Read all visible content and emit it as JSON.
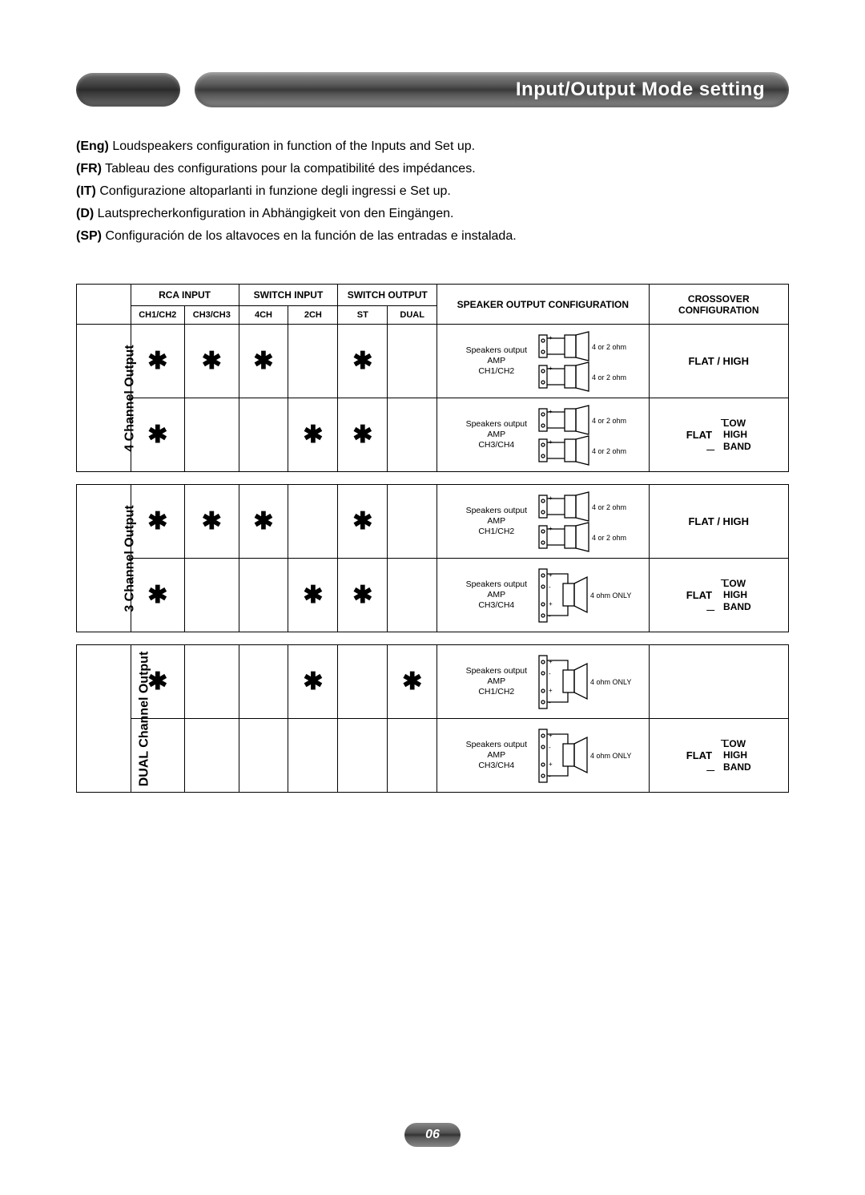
{
  "header": {
    "title": "Input/Output Mode setting"
  },
  "intro": {
    "eng": {
      "tag": "(Eng)",
      "text": "Loudspeakers configuration in function of the Inputs and Set up."
    },
    "fr": {
      "tag": "(FR)",
      "text": "Tableau des configurations pour la compatibilité des impédances."
    },
    "it": {
      "tag": "(IT)",
      "text": "Configurazione altoparlanti in funzione degli ingressi e Set up."
    },
    "d": {
      "tag": "(D)",
      "text": "Lautsprecherkonfiguration in Abhängigkeit von den Eingängen."
    },
    "sp": {
      "tag": "(SP)",
      "text": "Configuración de los altavoces en la función de las entradas e instalada."
    }
  },
  "table": {
    "headers": {
      "rca_input": "RCA INPUT",
      "switch_input": "SWITCH INPUT",
      "switch_output": "SWITCH OUTPUT",
      "speaker_output": "SPEAKER OUTPUT CONFIGURATION",
      "crossover": "CROSSOVER CONFIGURATION",
      "ch1ch2": "CH1/CH2",
      "ch3ch3": "CH3/CH3",
      "c4ch": "4CH",
      "c2ch": "2CH",
      "st": "ST",
      "dual": "DUAL"
    },
    "star": "✱",
    "sections": [
      {
        "label": "4 Channel Output",
        "rows": [
          {
            "marks": {
              "ch1ch2": true,
              "ch3ch3": true,
              "c4ch": true,
              "c2ch": false,
              "st": true,
              "dual": false
            },
            "speaker": {
              "title": "Speakers output",
              "amp": "AMP",
              "ch": "CH1/CH2",
              "type": "stereo",
              "ohm1": "4 or 2 ohm",
              "ohm2": "4 or 2 ohm"
            },
            "xover": {
              "mode": "single",
              "text": "FLAT / HIGH"
            }
          },
          {
            "marks": {
              "ch1ch2": true,
              "ch3ch3": false,
              "c4ch": false,
              "c2ch": true,
              "st": true,
              "dual": false
            },
            "speaker": {
              "title": "Speakers output",
              "amp": "AMP",
              "ch": "CH3/CH4",
              "type": "stereo",
              "ohm1": "4 or 2 ohm",
              "ohm2": "4 or 2 ohm"
            },
            "xover": {
              "mode": "stack",
              "flat": "FLAT",
              "opts": [
                "LOW",
                "HIGH",
                "BAND"
              ]
            }
          }
        ]
      },
      {
        "label": "3 Channel Output",
        "rows": [
          {
            "marks": {
              "ch1ch2": true,
              "ch3ch3": true,
              "c4ch": true,
              "c2ch": false,
              "st": true,
              "dual": false
            },
            "speaker": {
              "title": "Speakers output",
              "amp": "AMP",
              "ch": "CH1/CH2",
              "type": "stereo",
              "ohm1": "4 or 2 ohm",
              "ohm2": "4 or 2 ohm"
            },
            "xover": {
              "mode": "single",
              "text": "FLAT / HIGH"
            }
          },
          {
            "marks": {
              "ch1ch2": true,
              "ch3ch3": false,
              "c4ch": false,
              "c2ch": true,
              "st": true,
              "dual": false
            },
            "speaker": {
              "title": "Speakers output",
              "amp": "AMP",
              "ch": "CH3/CH4",
              "type": "bridged",
              "ohm1": "4 ohm ONLY"
            },
            "xover": {
              "mode": "stack",
              "flat": "FLAT",
              "opts": [
                "LOW",
                "HIGH",
                "BAND"
              ]
            }
          }
        ]
      },
      {
        "label": "DUAL Channel Output",
        "rows": [
          {
            "marks": {
              "ch1ch2": true,
              "ch3ch3": false,
              "c4ch": false,
              "c2ch": true,
              "st": false,
              "dual": true
            },
            "speaker": {
              "title": "Speakers output",
              "amp": "AMP",
              "ch": "CH1/CH2",
              "type": "bridged",
              "ohm1": "4 ohm ONLY"
            },
            "xover": {
              "mode": "blank"
            }
          },
          {
            "marks": {
              "ch1ch2": false,
              "ch3ch3": false,
              "c4ch": false,
              "c2ch": false,
              "st": false,
              "dual": false
            },
            "speaker": {
              "title": "Speakers output",
              "amp": "AMP",
              "ch": "CH3/CH4",
              "type": "bridged",
              "ohm1": "4 ohm ONLY"
            },
            "xover": {
              "mode": "stack",
              "flat": "FLAT",
              "opts": [
                "LOW",
                "HIGH",
                "BAND"
              ]
            }
          }
        ]
      }
    ]
  },
  "page_number": "06",
  "colors": {
    "text": "#000000",
    "border": "#000000",
    "pill_text": "#ffffff",
    "background": "#ffffff"
  }
}
